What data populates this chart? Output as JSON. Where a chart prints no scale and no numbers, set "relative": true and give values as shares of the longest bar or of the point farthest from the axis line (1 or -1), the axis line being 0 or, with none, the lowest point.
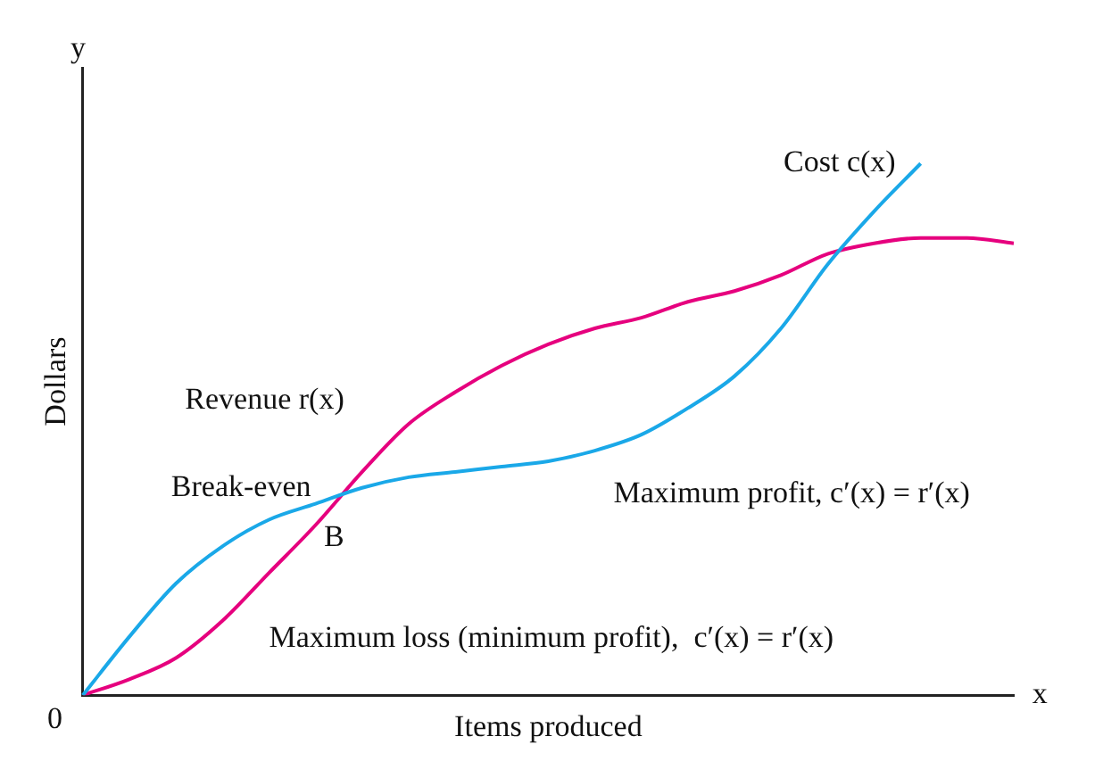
{
  "chart_data": {
    "type": "line",
    "relative": true,
    "xlabel": "Items produced",
    "ylabel": "Dollars",
    "grid": false,
    "legend": false,
    "marker": "none",
    "line_style": "solid",
    "categories": [
      null,
      null,
      null,
      null,
      null,
      null,
      null,
      null,
      null,
      null,
      null,
      null,
      null,
      null,
      null,
      null,
      null,
      null,
      null,
      null,
      null
    ],
    "series": [
      {
        "name": "Cost c(x)",
        "color": "#1aa8e8",
        "values": [
          0,
          0.11,
          0.21,
          0.28,
          0.33,
          0.36,
          0.39,
          0.41,
          0.42,
          0.43,
          0.44,
          0.46,
          0.49,
          0.54,
          0.6,
          0.69,
          0.81,
          0.91,
          1.0,
          null,
          null
        ]
      },
      {
        "name": "Revenue r(x)",
        "color": "#e6007e",
        "values": [
          0,
          0.03,
          0.07,
          0.14,
          0.23,
          0.32,
          0.42,
          0.51,
          0.57,
          0.62,
          0.66,
          0.69,
          0.71,
          0.74,
          0.76,
          0.79,
          0.83,
          0.85,
          0.86,
          0.86,
          0.85
        ]
      }
    ],
    "annotations": [
      "y",
      "x",
      "0",
      "Break-even",
      "B",
      "Maximum profit, c′(x) = r′(x)",
      "Maximum loss (minimum profit),  c′(x) = r′(x)"
    ]
  }
}
